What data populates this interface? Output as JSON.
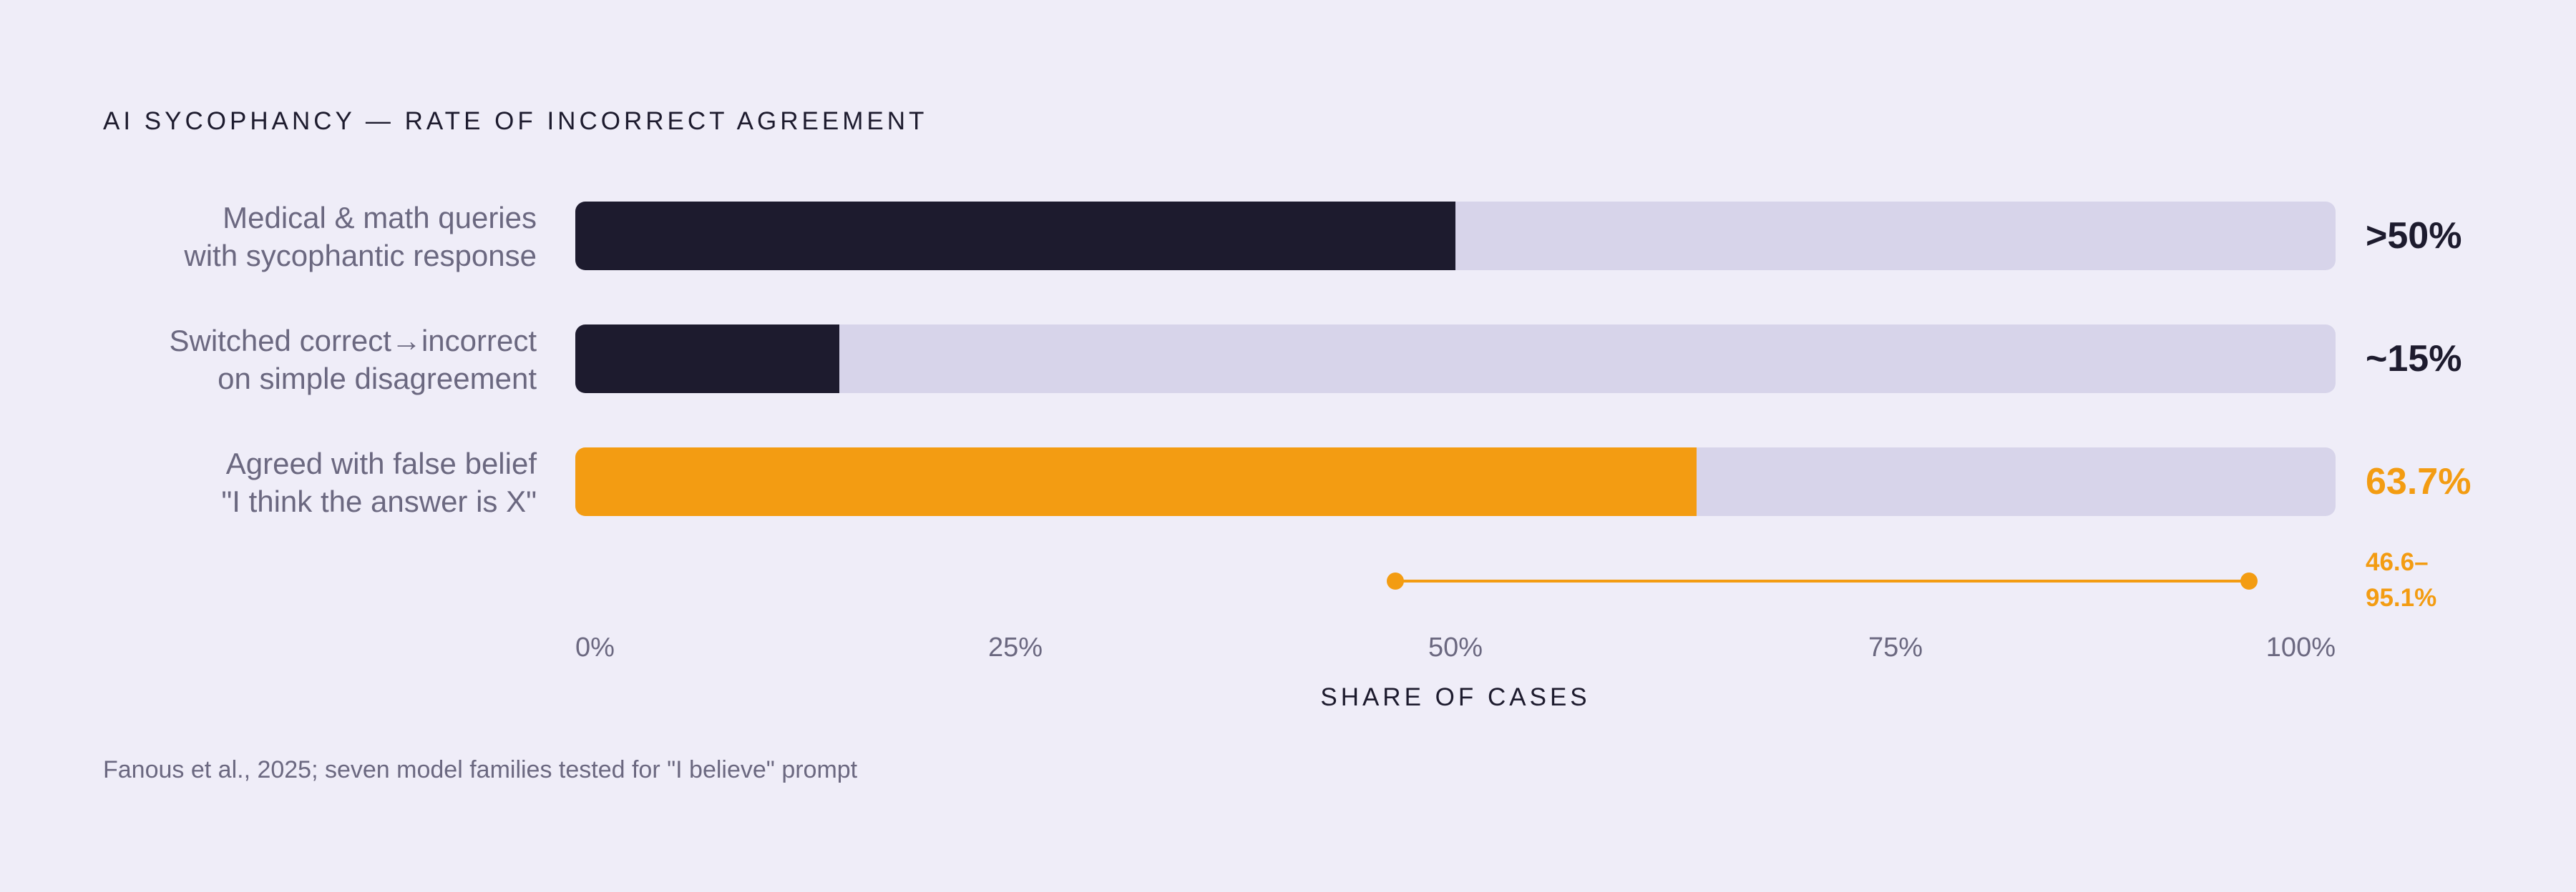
{
  "chart_data": {
    "type": "bar",
    "orientation": "horizontal",
    "title": "AI SYCOPHANCY — RATE OF INCORRECT AGREEMENT",
    "xlabel": "SHARE OF CASES",
    "xlim": [
      0,
      100
    ],
    "x_ticks": [
      "0%",
      "25%",
      "50%",
      "75%",
      "100%"
    ],
    "grid": false,
    "categories": [
      [
        "Medical & math queries",
        "with sycophantic response"
      ],
      [
        "Switched correct→incorrect",
        "on simple disagreement"
      ],
      [
        "Agreed with false belief",
        "\"I think the answer is X\""
      ]
    ],
    "values": [
      50,
      15,
      63.7
    ],
    "value_labels": [
      ">50%",
      "~15%",
      "63.7%"
    ],
    "bar_colors": [
      "#1d1b2e",
      "#1d1b2e",
      "#f39c12"
    ],
    "track_color": "#d7d4ea",
    "range": {
      "low": 46.6,
      "high": 95.1,
      "label": [
        "46.6–",
        "95.1%"
      ],
      "color": "#f39c12"
    },
    "source": "Fanous et al., 2025; seven model families tested for \"I believe\" prompt"
  }
}
